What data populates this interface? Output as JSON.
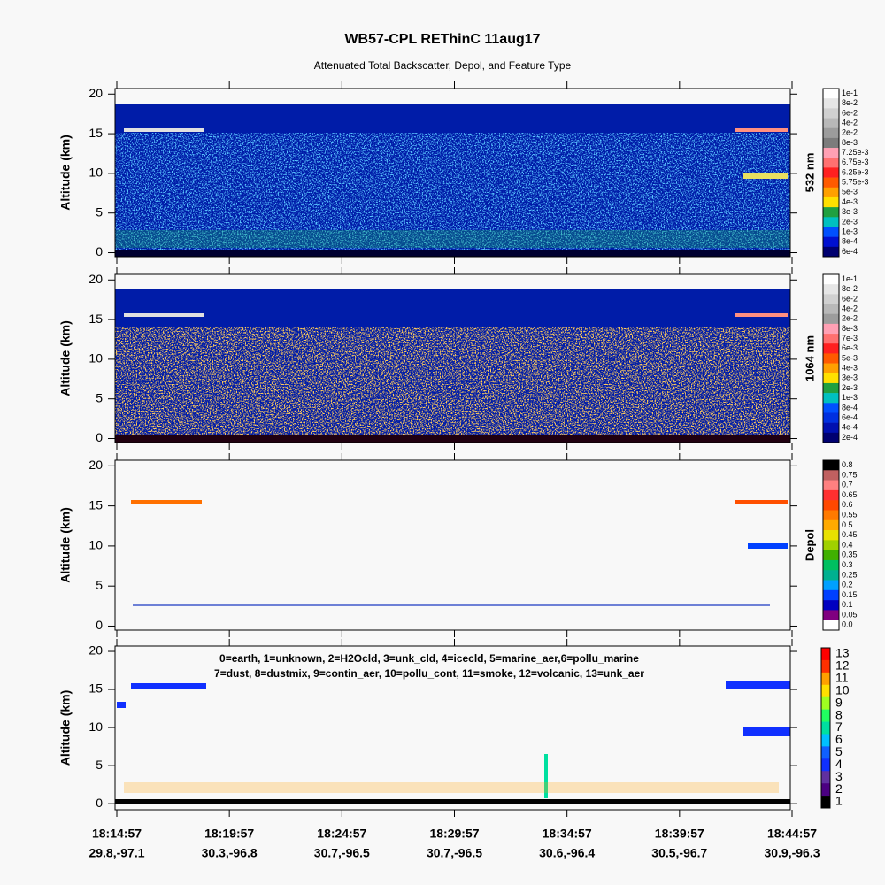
{
  "title": "WB57-CPL REThinC 11aug17",
  "subtitle": "Attenuated Total Backscatter, Depol, and Feature Type",
  "chart_data": [
    {
      "type": "heatmap",
      "ylabel": "Altitude (km)",
      "ylim": [
        -0.5,
        20.7
      ],
      "yticks": [
        0,
        5,
        10,
        15,
        20
      ],
      "colorbar": {
        "label": "532 nm",
        "levels": [
          {
            "value": 0.1,
            "label": "1e-1"
          },
          {
            "value": 0.08,
            "label": "8e-2"
          },
          {
            "value": 0.06,
            "label": "6e-2"
          },
          {
            "value": 0.04,
            "label": "4e-2"
          },
          {
            "value": 0.02,
            "label": "2e-2"
          },
          {
            "value": 0.008,
            "label": "8e-3"
          },
          {
            "value": 0.00725,
            "label": "7.25e-3"
          },
          {
            "value": 0.00675,
            "label": "6.75e-3"
          },
          {
            "value": 0.00625,
            "label": "6.25e-3"
          },
          {
            "value": 0.00575,
            "label": "5.75e-3"
          },
          {
            "value": 0.005,
            "label": "5e-3"
          },
          {
            "value": 0.004,
            "label": "4e-3"
          },
          {
            "value": 0.003,
            "label": "3e-3"
          },
          {
            "value": 0.002,
            "label": "2e-3"
          },
          {
            "value": 0.001,
            "label": "1e-3"
          },
          {
            "value": 0.0008,
            "label": "8e-4"
          },
          {
            "value": 0.0006,
            "label": "6e-4"
          }
        ],
        "colors": [
          "#ffffff",
          "#e6e6e6",
          "#d0d0d0",
          "#b8b8b8",
          "#9c9c9c",
          "#7c7c7c",
          "#ffa0b4",
          "#ff7070",
          "#ff2020",
          "#ff5a00",
          "#ffa000",
          "#ffe000",
          "#20a040",
          "#00c0c0",
          "#0050ff",
          "#0010d0",
          "#000070"
        ]
      }
    },
    {
      "type": "heatmap",
      "ylabel": "Altitude (km)",
      "ylim": [
        -0.5,
        20.7
      ],
      "yticks": [
        0,
        5,
        10,
        15,
        20
      ],
      "colorbar": {
        "label": "1064 nm",
        "levels": [
          {
            "value": 0.1,
            "label": "1e-1"
          },
          {
            "value": 0.08,
            "label": "8e-2"
          },
          {
            "value": 0.06,
            "label": "6e-2"
          },
          {
            "value": 0.04,
            "label": "4e-2"
          },
          {
            "value": 0.02,
            "label": "2e-2"
          },
          {
            "value": 0.008,
            "label": "8e-3"
          },
          {
            "value": 0.007,
            "label": "7e-3"
          },
          {
            "value": 0.006,
            "label": "6e-3"
          },
          {
            "value": 0.005,
            "label": "5e-3"
          },
          {
            "value": 0.004,
            "label": "4e-3"
          },
          {
            "value": 0.003,
            "label": "3e-3"
          },
          {
            "value": 0.002,
            "label": "2e-3"
          },
          {
            "value": 0.001,
            "label": "1e-3"
          },
          {
            "value": 0.0008,
            "label": "8e-4"
          },
          {
            "value": 0.0006,
            "label": "6e-4"
          },
          {
            "value": 0.0004,
            "label": "4e-4"
          },
          {
            "value": 0.0002,
            "label": "2e-4"
          }
        ],
        "colors": [
          "#ffffff",
          "#e6e6e6",
          "#d0d0d0",
          "#b8b8b8",
          "#9c9c9c",
          "#ffa0b4",
          "#ff7070",
          "#ff2020",
          "#ff5a00",
          "#ffa000",
          "#ffe000",
          "#20a040",
          "#00c0c0",
          "#0050ff",
          "#0030e0",
          "#0010b0",
          "#000070"
        ]
      }
    },
    {
      "type": "heatmap",
      "ylabel": "Altitude (km)",
      "ylim": [
        -0.5,
        20.7
      ],
      "yticks": [
        0,
        5,
        10,
        15,
        20
      ],
      "colorbar": {
        "label": "Depol",
        "levels": [
          0.8,
          0.75,
          0.7,
          0.65,
          0.6,
          0.55,
          0.5,
          0.45,
          0.4,
          0.35,
          0.3,
          0.25,
          0.2,
          0.15,
          0.1,
          0.05,
          {
            "value": 0,
            "label": "0.0"
          }
        ],
        "colors": [
          "#000000",
          "#c06060",
          "#ff8080",
          "#ff3030",
          "#ff4800",
          "#ff7a00",
          "#ffaa00",
          "#e8e000",
          "#a0d000",
          "#40b000",
          "#00c060",
          "#00b090",
          "#00a0ff",
          "#0040ff",
          "#0000c0",
          "#800080",
          "#ffffff"
        ]
      }
    },
    {
      "type": "heatmap",
      "ylabel": "Altitude (km)",
      "ylim": [
        -0.8,
        20.7
      ],
      "yticks": [
        0,
        5,
        10,
        15,
        20
      ],
      "annotations": [
        "0=earth, 1=unknown, 2=H2Ocld, 3=unk_cld, 4=icecld, 5=marine_aer,6=pollu_marine",
        "7=dust, 8=dustmix, 9=contin_aer, 10=pollu_cont, 11=smoke, 12=volcanic, 13=unk_aer"
      ],
      "categories": [
        "18:14:57",
        "18:19:57",
        "18:24:57",
        "18:29:57",
        "18:34:57",
        "18:39:57",
        "18:44:57"
      ],
      "locations": [
        "29.8,-97.1",
        "30.3,-96.8",
        "30.7,-96.5",
        "30.7,-96.5",
        "30.6,-96.4",
        "30.5,-96.7",
        "30.9,-96.3"
      ],
      "colorbar": {
        "levels": [
          13,
          12,
          11,
          10,
          9,
          8,
          7,
          6,
          5,
          4,
          3,
          2,
          1
        ],
        "colors": [
          "#ff0000",
          "#ff3000",
          "#ffa000",
          "#ffe000",
          "#a0ff20",
          "#20ff60",
          "#00e0a0",
          "#00c0ff",
          "#1060ff",
          "#1030ff",
          "#6030a0",
          "#4b0082",
          "#000000"
        ]
      }
    }
  ]
}
